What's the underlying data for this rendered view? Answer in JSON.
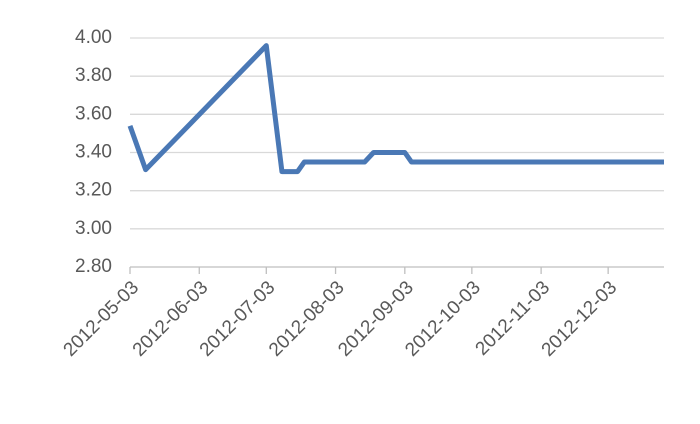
{
  "chart_data": {
    "type": "line",
    "series": [
      {
        "color": "#4a78b5",
        "x": [
          "2012-05-03",
          "2012-05-10",
          "2012-07-03",
          "2012-07-10",
          "2012-07-17",
          "2012-07-20",
          "2012-08-16",
          "2012-08-20",
          "2012-09-03",
          "2012-09-06",
          "2012-12-28"
        ],
        "values": [
          3.54,
          3.31,
          3.96,
          3.3,
          3.3,
          3.35,
          3.35,
          3.4,
          3.4,
          3.35,
          3.35
        ]
      }
    ],
    "xlim": [
      "2012-05-03",
      "2012-12-28"
    ],
    "xticks": [
      "2012-05-03",
      "2012-06-03",
      "2012-07-03",
      "2012-08-03",
      "2012-09-03",
      "2012-10-03",
      "2012-11-03",
      "2012-12-03"
    ],
    "ylim": [
      2.8,
      4.0
    ],
    "yticks": [
      {
        "value": 2.8,
        "label": "2.80"
      },
      {
        "value": 3.0,
        "label": "3.00"
      },
      {
        "value": 3.2,
        "label": "3.20"
      },
      {
        "value": 3.4,
        "label": "3.40"
      },
      {
        "value": 3.6,
        "label": "3.60"
      },
      {
        "value": 3.8,
        "label": "3.80"
      },
      {
        "value": 4.0,
        "label": "4.00"
      }
    ],
    "grid": true
  }
}
